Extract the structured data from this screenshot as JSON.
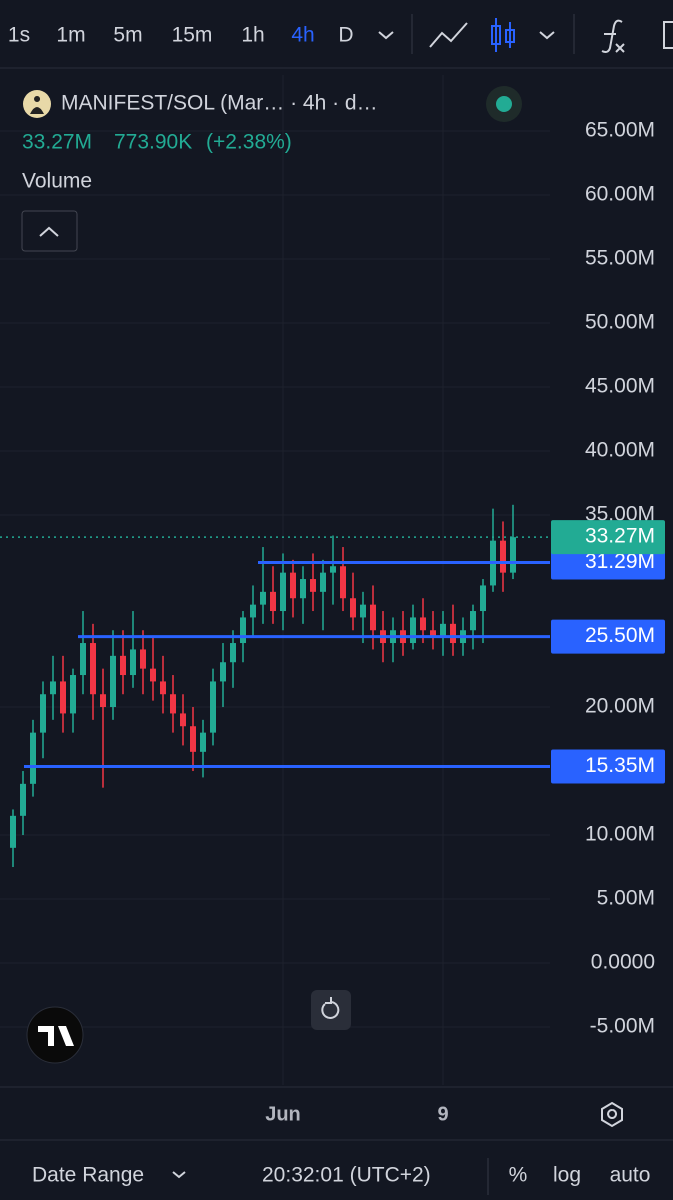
{
  "toolbar": {
    "intervals": [
      "1s",
      "1m",
      "5m",
      "15m",
      "1h",
      "4h",
      "D"
    ]
  },
  "chart_data": {
    "type": "candlestick",
    "title": "MANIFEST/SOL (Mar… · 4h · d…",
    "header_values": [
      "33.27M",
      "773.90K",
      "(+2.38%)"
    ],
    "indicator": "Volume",
    "categories": [
      null,
      null,
      null,
      null,
      null,
      null,
      null,
      null,
      null,
      null,
      null,
      null,
      null,
      null,
      null,
      null,
      null,
      null,
      null,
      null,
      null,
      null,
      null,
      null,
      null,
      null,
      null,
      "Jun",
      null,
      null,
      null,
      null,
      null,
      null,
      null,
      null,
      null,
      null,
      null,
      null,
      null,
      null,
      null,
      "9",
      null,
      null,
      null,
      null,
      null,
      null,
      null
    ],
    "ohlc": [
      [
        9,
        12,
        7.5,
        11.5
      ],
      [
        11.5,
        15,
        10,
        14
      ],
      [
        14,
        19,
        13,
        18
      ],
      [
        18,
        22,
        16,
        21
      ],
      [
        21,
        24,
        19,
        22
      ],
      [
        22,
        24,
        18,
        19.5
      ],
      [
        19.5,
        23,
        18,
        22.5
      ],
      [
        22.5,
        27.5,
        21,
        25
      ],
      [
        25,
        26.5,
        19,
        21
      ],
      [
        21,
        23,
        13.7,
        20
      ],
      [
        20,
        26,
        19,
        24
      ],
      [
        24,
        26,
        21,
        22.5
      ],
      [
        22.5,
        27.5,
        21.5,
        24.5
      ],
      [
        24.5,
        26,
        21,
        23
      ],
      [
        23,
        25.5,
        20.5,
        22
      ],
      [
        22,
        24,
        19.5,
        21
      ],
      [
        21,
        22.5,
        18,
        19.5
      ],
      [
        19.5,
        21,
        17,
        18.5
      ],
      [
        18.5,
        20,
        15,
        16.5
      ],
      [
        16.5,
        19,
        14.5,
        18
      ],
      [
        18,
        23,
        17,
        22
      ],
      [
        22,
        25,
        20,
        23.5
      ],
      [
        23.5,
        26,
        21.5,
        25
      ],
      [
        25,
        27.5,
        23.5,
        27
      ],
      [
        27,
        29.5,
        25.5,
        28
      ],
      [
        28,
        32.5,
        26.5,
        29
      ],
      [
        29,
        31,
        26.5,
        27.5
      ],
      [
        27.5,
        32,
        26,
        30.5
      ],
      [
        30.5,
        31.5,
        27,
        28.5
      ],
      [
        28.5,
        31,
        26.5,
        30
      ],
      [
        30,
        32,
        27.5,
        29
      ],
      [
        29,
        31.5,
        26,
        30.5
      ],
      [
        30.5,
        33.4,
        28,
        31
      ],
      [
        31,
        32.5,
        27.5,
        28.5
      ],
      [
        28.5,
        30.5,
        26,
        27
      ],
      [
        27,
        29,
        25,
        28
      ],
      [
        28,
        29.5,
        24.5,
        26
      ],
      [
        26,
        27.5,
        23.5,
        25
      ],
      [
        25,
        27,
        23.5,
        26
      ],
      [
        26,
        27.5,
        24,
        25
      ],
      [
        25,
        28,
        24.5,
        27
      ],
      [
        27,
        28.5,
        25,
        26
      ],
      [
        26,
        27.5,
        24.5,
        25.5
      ],
      [
        25.5,
        27.5,
        24,
        26.5
      ],
      [
        26.5,
        28,
        24,
        25
      ],
      [
        25,
        27,
        24,
        26
      ],
      [
        26,
        28,
        24.5,
        27.5
      ],
      [
        27.5,
        30,
        25,
        29.5
      ],
      [
        29.5,
        35.5,
        29,
        33
      ],
      [
        33,
        34.5,
        29,
        30.5
      ],
      [
        30.5,
        35.8,
        30,
        33.27
      ]
    ],
    "up_color": "#22ab94",
    "down_color": "#f23645",
    "ylim": [
      -9.53,
      69.38
    ],
    "yticks": [
      {
        "value": 65,
        "label": "65.00M"
      },
      {
        "value": 60,
        "label": "60.00M"
      },
      {
        "value": 55,
        "label": "55.00M"
      },
      {
        "value": 50,
        "label": "50.00M"
      },
      {
        "value": 45,
        "label": "45.00M"
      },
      {
        "value": 40,
        "label": "40.00M"
      },
      {
        "value": 35,
        "label": "35.00M"
      },
      {
        "value": 20,
        "label": "20.00M"
      },
      {
        "value": 10,
        "label": "10.00M"
      },
      {
        "value": 5,
        "label": "5.00M"
      },
      {
        "value": 0,
        "label": "0.0000"
      },
      {
        "value": -5,
        "label": "-5.00M"
      }
    ],
    "last": {
      "value": 33.27,
      "label": "33.27M",
      "color": "#22ab94"
    },
    "levels": [
      {
        "value": 31.29,
        "label": "31.29M"
      },
      {
        "value": 25.5,
        "label": "25.50M"
      },
      {
        "value": 15.35,
        "label": "15.35M"
      }
    ],
    "level_color": "#2962ff",
    "grid": true
  },
  "footer": {
    "date_range": "Date Range",
    "time": "20:32:01 (UTC+2)",
    "percent": "%",
    "log": "log",
    "auto": "auto"
  }
}
